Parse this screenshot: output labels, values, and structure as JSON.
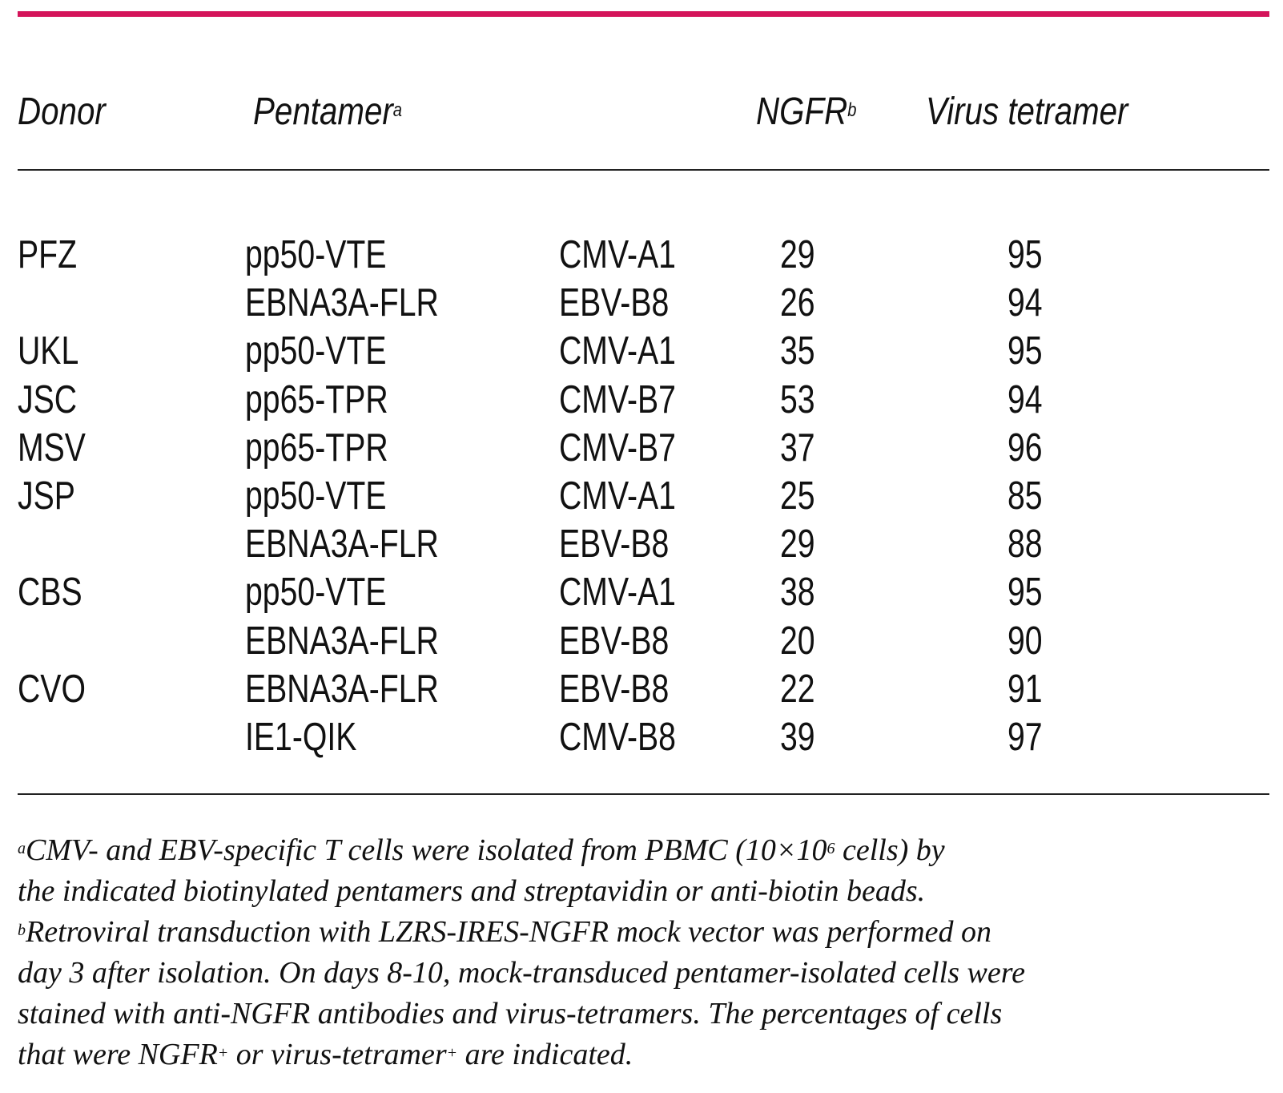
{
  "accent_color": "#d4145a",
  "table": {
    "headers": {
      "donor": "Donor",
      "pentamer": "Pentamer",
      "pentamer_note": "a",
      "ngfr": "NGFR",
      "ngfr_note": "b",
      "virus_tetramer": "Virus tetramer"
    },
    "rows": [
      {
        "donor": "PFZ",
        "pentamer": "pp50-VTE",
        "tetramer": "CMV-A1",
        "ngfr": "29",
        "virus": "95"
      },
      {
        "donor": "",
        "pentamer": "EBNA3A-FLR",
        "tetramer": "EBV-B8",
        "ngfr": "26",
        "virus": "94"
      },
      {
        "donor": "UKL",
        "pentamer": "pp50-VTE",
        "tetramer": "CMV-A1",
        "ngfr": "35",
        "virus": "95"
      },
      {
        "donor": "JSC",
        "pentamer": "pp65-TPR",
        "tetramer": "CMV-B7",
        "ngfr": "53",
        "virus": "94"
      },
      {
        "donor": "MSV",
        "pentamer": "pp65-TPR",
        "tetramer": "CMV-B7",
        "ngfr": "37",
        "virus": "96"
      },
      {
        "donor": "JSP",
        "pentamer": "pp50-VTE",
        "tetramer": "CMV-A1",
        "ngfr": "25",
        "virus": "85"
      },
      {
        "donor": "",
        "pentamer": "EBNA3A-FLR",
        "tetramer": "EBV-B8",
        "ngfr": "29",
        "virus": "88"
      },
      {
        "donor": "CBS",
        "pentamer": "pp50-VTE",
        "tetramer": "CMV-A1",
        "ngfr": "38",
        "virus": "95"
      },
      {
        "donor": "",
        "pentamer": "EBNA3A-FLR",
        "tetramer": "EBV-B8",
        "ngfr": "20",
        "virus": "90"
      },
      {
        "donor": "CVO",
        "pentamer": "EBNA3A-FLR",
        "tetramer": "EBV-B8",
        "ngfr": "22",
        "virus": "91"
      },
      {
        "donor": "",
        "pentamer": "IE1-QIK",
        "tetramer": "CMV-B8",
        "ngfr": "39",
        "virus": "97"
      }
    ]
  },
  "footnotes": {
    "a_mark": "a",
    "a_line1": "CMV- and EBV-specific T cells were isolated from PBMC (10×10",
    "a_exp": "6",
    "a_line1_end": " cells) by",
    "a_line2": "the indicated biotinylated pentamers and streptavidin or anti-biotin beads.",
    "b_mark": "b",
    "b_line1": "Retroviral transduction with LZRS-IRES-NGFR mock vector was performed on",
    "b_line2": "day 3 after isolation. On days 8-10, mock-transduced pentamer-isolated cells were",
    "b_line3": "stained with anti-NGFR antibodies and virus-tetramers. The percentages of cells",
    "b_line4_a": "that were NGFR",
    "b_line4_plus1": "+",
    "b_line4_b": " or virus-tetramer",
    "b_line4_plus2": "+",
    "b_line4_c": " are indicated."
  }
}
